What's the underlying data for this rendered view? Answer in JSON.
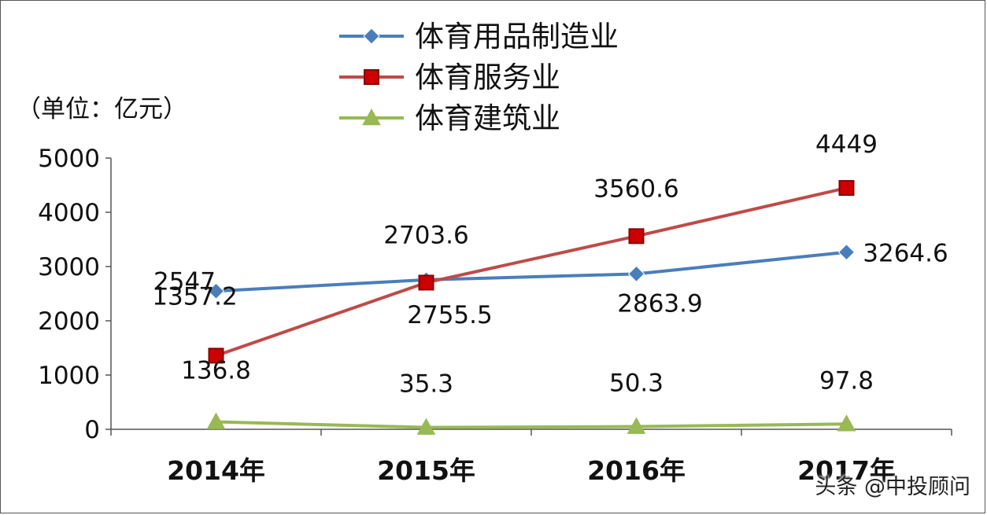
{
  "watermark": "头条 @中投顾问",
  "chart_data": {
    "type": "line",
    "unit_label": "（单位：亿元）",
    "categories": [
      "2014年",
      "2015年",
      "2016年",
      "2017年"
    ],
    "ylim": [
      0,
      5000
    ],
    "yticks": [
      0,
      1000,
      2000,
      3000,
      4000,
      5000
    ],
    "grid": false,
    "legend_position": "top-center",
    "series": [
      {
        "name": "体育用品制造业",
        "color": "#4a7ebb",
        "marker": "diamond",
        "values": [
          2547,
          2755.5,
          2863.9,
          3264.6
        ],
        "labels": [
          "2547",
          "2755.5",
          "2863.9",
          "3264.6"
        ]
      },
      {
        "name": "体育服务业",
        "color": "#be4b48",
        "marker": "square",
        "values": [
          1357.2,
          2703.6,
          3560.6,
          4449
        ],
        "labels": [
          "1357.2",
          "2703.6",
          "3560.6",
          "4449"
        ]
      },
      {
        "name": "体育建筑业",
        "color": "#98b954",
        "marker": "triangle",
        "values": [
          136.8,
          35.3,
          50.3,
          97.8
        ],
        "labels": [
          "136.8",
          "35.3",
          "50.3",
          "97.8"
        ]
      }
    ]
  }
}
